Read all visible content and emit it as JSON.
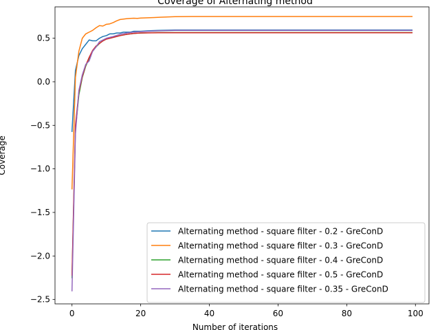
{
  "chart_data": {
    "type": "line",
    "title": "Coverage of Alternating method",
    "xlabel": "Number of iterations",
    "ylabel": "Coverage",
    "xlim": [
      -4.95,
      103.95
    ],
    "ylim": [
      -2.55,
      0.86
    ],
    "xticks": [
      0,
      20,
      40,
      60,
      80,
      100
    ],
    "xtick_labels": [
      "0",
      "20",
      "40",
      "60",
      "80",
      "100"
    ],
    "yticks": [
      -2.5,
      -2.0,
      -1.5,
      -1.0,
      -0.5,
      0.0,
      0.5
    ],
    "ytick_labels": [
      "−2.5",
      "−2.0",
      "−1.5",
      "−1.0",
      "−0.5",
      "0.0",
      "0.5"
    ],
    "grid": false,
    "legend_position": "lower-right",
    "series": [
      {
        "name": "Alternating method - square filter - 0.2 - GreConD",
        "color": "#1f77b4",
        "x": [
          0,
          1,
          2,
          3,
          4,
          5,
          6,
          7,
          8,
          9,
          10,
          11,
          12,
          13,
          14,
          15,
          16,
          17,
          18,
          20,
          22,
          25,
          30,
          35,
          40,
          50,
          60,
          70,
          80,
          90,
          99
        ],
        "y": [
          -0.57,
          0.13,
          0.3,
          0.38,
          0.43,
          0.48,
          0.47,
          0.47,
          0.5,
          0.52,
          0.53,
          0.55,
          0.55,
          0.56,
          0.56,
          0.57,
          0.57,
          0.57,
          0.58,
          0.58,
          0.585,
          0.59,
          0.595,
          0.595,
          0.595,
          0.595,
          0.595,
          0.595,
          0.595,
          0.595,
          0.595
        ]
      },
      {
        "name": "Alternating method - square filter - 0.3 - GreConD",
        "color": "#ff7f0e",
        "x": [
          0,
          1,
          2,
          3,
          4,
          5,
          6,
          7,
          8,
          9,
          10,
          11,
          12,
          13,
          14,
          15,
          16,
          17,
          18,
          19,
          20,
          22,
          24,
          26,
          28,
          30,
          35,
          40,
          50,
          60,
          70,
          80,
          90,
          99
        ],
        "y": [
          -1.23,
          0.05,
          0.35,
          0.5,
          0.55,
          0.57,
          0.59,
          0.62,
          0.645,
          0.64,
          0.66,
          0.665,
          0.68,
          0.7,
          0.715,
          0.72,
          0.725,
          0.728,
          0.73,
          0.728,
          0.732,
          0.735,
          0.738,
          0.742,
          0.745,
          0.748,
          0.75,
          0.75,
          0.75,
          0.75,
          0.75,
          0.75,
          0.75,
          0.75
        ]
      },
      {
        "name": "Alternating method - square filter - 0.4 - GreConD",
        "color": "#2ca02c",
        "x": [
          0,
          1,
          2,
          3,
          4,
          5,
          6,
          7,
          8,
          9,
          10,
          12,
          14,
          16,
          18,
          20,
          25,
          30,
          40,
          50,
          60,
          70,
          80,
          90,
          99
        ],
        "y": [
          -2.25,
          -0.55,
          -0.15,
          0.05,
          0.18,
          0.27,
          0.35,
          0.4,
          0.44,
          0.47,
          0.49,
          0.51,
          0.53,
          0.545,
          0.555,
          0.56,
          0.565,
          0.565,
          0.565,
          0.565,
          0.565,
          0.565,
          0.565,
          0.565,
          0.565
        ]
      },
      {
        "name": "Alternating method - square filter - 0.5 - GreConD",
        "color": "#d62728",
        "x": [
          0,
          1,
          2,
          3,
          4,
          5,
          6,
          7,
          8,
          9,
          10,
          12,
          14,
          16,
          18,
          20,
          25,
          30,
          40,
          50,
          60,
          70,
          80,
          90,
          99
        ],
        "y": [
          -2.22,
          -0.5,
          -0.12,
          0.06,
          0.19,
          0.28,
          0.36,
          0.41,
          0.44,
          0.47,
          0.49,
          0.51,
          0.53,
          0.545,
          0.555,
          0.56,
          0.563,
          0.563,
          0.563,
          0.563,
          0.563,
          0.563,
          0.563,
          0.563,
          0.563
        ]
      },
      {
        "name": "Alternating method - square filter - 0.35 - GreConD",
        "color": "#9467bd",
        "x": [
          0,
          1,
          2,
          3,
          4,
          5,
          6,
          7,
          8,
          9,
          10,
          12,
          14,
          16,
          18,
          20,
          25,
          30,
          35,
          40,
          50,
          60,
          70,
          80,
          90,
          99
        ],
        "y": [
          -2.4,
          -0.6,
          -0.1,
          0.08,
          0.2,
          0.24,
          0.35,
          0.4,
          0.46,
          0.48,
          0.5,
          0.52,
          0.545,
          0.56,
          0.57,
          0.575,
          0.585,
          0.59,
          0.59,
          0.59,
          0.59,
          0.59,
          0.59,
          0.59,
          0.59,
          0.59
        ]
      }
    ]
  }
}
